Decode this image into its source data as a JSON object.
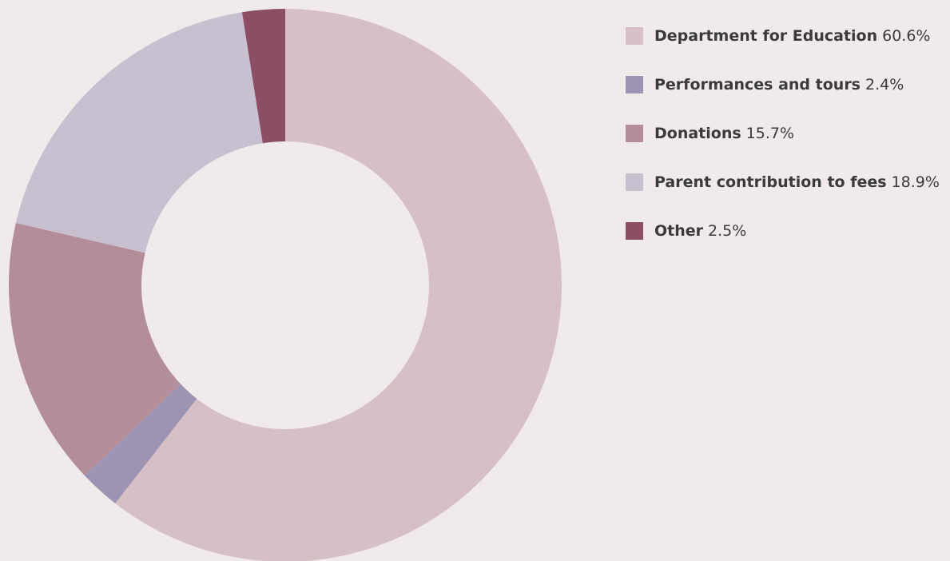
{
  "chart_data": {
    "type": "donut",
    "categories": [
      "Department for Education",
      "Performances and tours",
      "Donations",
      "Parent contribution to fees",
      "Other"
    ],
    "values": [
      60.6,
      2.4,
      15.7,
      18.9,
      2.5
    ],
    "value_labels": [
      "60.6%",
      "2.4%",
      "15.7%",
      "18.9%",
      "2.5%"
    ],
    "colors": [
      "#d7c0c5",
      "#9d93b3",
      "#b38d97",
      "#c8c0cf",
      "#8b4e65"
    ],
    "legend": "right"
  }
}
